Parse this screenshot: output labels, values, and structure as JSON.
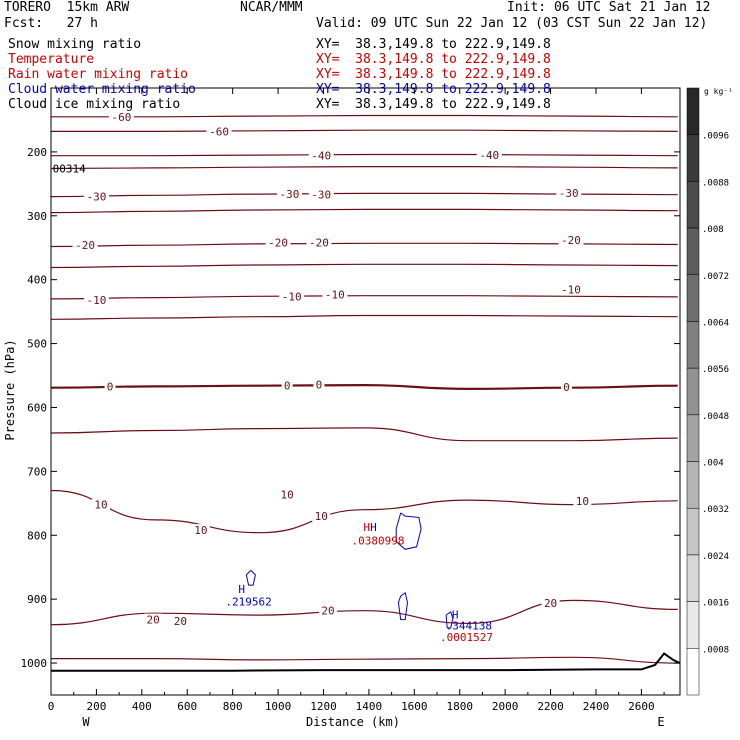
{
  "header": {
    "model": "TORERO  15km ARW",
    "center": "NCAR/MMM",
    "init": "Init: 06 UTC Sat 21 Jan 12",
    "fcst": "Fcst:   27 h",
    "valid": "Valid: 09 UTC Sun 22 Jan 12 (03 CST Sun 22 Jan 12)"
  },
  "fields": [
    {
      "name": "Snow mixing ratio",
      "xy": "XY=  38.3,149.8 to 222.9,149.8",
      "color": "#000000"
    },
    {
      "name": "Temperature",
      "xy": "XY=  38.3,149.8 to 222.9,149.8",
      "color": "#cc0000"
    },
    {
      "name": "Rain water mixing ratio",
      "xy": "XY=  38.3,149.8 to 222.9,149.8",
      "color": "#cc0000"
    },
    {
      "name": "Cloud water mixing ratio",
      "xy": "XY=  38.3,149.8 to 222.9,149.8",
      "color": "#0000cc"
    },
    {
      "name": "Cloud ice mixing ratio",
      "xy": "XY=  38.3,149.8 to 222.9,149.8",
      "color": "#000000"
    }
  ],
  "chart_data": {
    "type": "contour-cross-section",
    "xlabel": "Distance (km)",
    "ylabel": "Pressure (hPa)",
    "x_ticks": [
      0,
      200,
      400,
      600,
      800,
      1000,
      1200,
      1400,
      1600,
      1800,
      2000,
      2200,
      2400,
      2600
    ],
    "xlim": [
      0,
      2770
    ],
    "y_ticks": [
      200,
      300,
      400,
      500,
      600,
      700,
      800,
      900,
      1000
    ],
    "ylim": [
      100,
      1050
    ],
    "x_end_labels": {
      "left": "W",
      "right": "E"
    },
    "colorbar": {
      "unit": "g kg⁻¹",
      "labels": [
        ".0096",
        ".0088",
        ".008",
        ".0072",
        ".0064",
        ".0056",
        ".0048",
        ".004",
        ".0032",
        ".0024",
        ".0016",
        ".0008"
      ],
      "levels": [
        0.0096,
        0.0088,
        0.008,
        0.0072,
        0.0064,
        0.0056,
        0.0048,
        0.004,
        0.0032,
        0.0024,
        0.0016,
        0.0008
      ]
    },
    "temperature_contours": [
      {
        "label": "-60",
        "p": [
          145,
          145,
          144,
          143,
          143,
          144,
          145
        ]
      },
      {
        "label": "-60",
        "p": [
          168,
          168,
          167,
          166,
          166,
          167,
          168
        ]
      },
      {
        "label": "-40",
        "p": [
          206,
          206,
          205,
          204,
          204,
          205,
          206
        ]
      },
      {
        "label": "-40",
        "p": [
          226,
          225,
          224,
          223,
          223,
          224,
          225
        ]
      },
      {
        "label": "-30",
        "p": [
          270,
          268,
          266,
          265,
          265,
          266,
          267
        ]
      },
      {
        "label": "-30",
        "p": [
          295,
          293,
          291,
          290,
          290,
          291,
          292
        ]
      },
      {
        "label": "-20",
        "p": [
          348,
          346,
          344,
          343,
          343,
          344,
          345
        ]
      },
      {
        "label": "-20",
        "p": [
          381,
          379,
          377,
          376,
          376,
          377,
          378
        ]
      },
      {
        "label": "-10",
        "p": [
          430,
          428,
          426,
          425,
          425,
          426,
          427
        ]
      },
      {
        "label": "-10",
        "p": [
          462,
          460,
          458,
          456,
          456,
          457,
          458
        ]
      },
      {
        "label": "0",
        "p": [
          569,
          567,
          566,
          565,
          571,
          569,
          566
        ]
      },
      {
        "label": "",
        "p": [
          640,
          636,
          633,
          632,
          652,
          652,
          648
        ]
      },
      {
        "label": "10",
        "p": [
          730,
          776,
          796,
          760,
          745,
          752,
          746
        ]
      },
      {
        "label": "20",
        "p": [
          940,
          922,
          925,
          918,
          938,
          902,
          916
        ]
      },
      {
        "label": "",
        "p": [
          993,
          993,
          995,
          994,
          993,
          991,
          1000
        ]
      }
    ],
    "contour_x": [
      0,
      460,
      920,
      1380,
      1840,
      2300,
      2760
    ],
    "temperature_labels": [
      {
        "text": "-60",
        "x": 310,
        "p": 145
      },
      {
        "text": "-60",
        "x": 740,
        "p": 168
      },
      {
        "text": "-40",
        "x": 1190,
        "p": 206
      },
      {
        "text": "-40",
        "x": 1930,
        "p": 205
      },
      {
        "text": "-30",
        "x": 200,
        "p": 270
      },
      {
        "text": "-30",
        "x": 1050,
        "p": 266
      },
      {
        "text": "-30",
        "x": 1190,
        "p": 267
      },
      {
        "text": "-30",
        "x": 2280,
        "p": 264
      },
      {
        "text": "-20",
        "x": 150,
        "p": 346
      },
      {
        "text": "-20",
        "x": 1000,
        "p": 342
      },
      {
        "text": "-20",
        "x": 1180,
        "p": 342
      },
      {
        "text": "-20",
        "x": 2290,
        "p": 338
      },
      {
        "text": "-10",
        "x": 200,
        "p": 432
      },
      {
        "text": "-10",
        "x": 1060,
        "p": 426
      },
      {
        "text": "-10",
        "x": 1250,
        "p": 423
      },
      {
        "text": "-10",
        "x": 2290,
        "p": 415
      },
      {
        "text": "0",
        "x": 260,
        "p": 567
      },
      {
        "text": "0",
        "x": 1040,
        "p": 566
      },
      {
        "text": "0",
        "x": 1180,
        "p": 564
      },
      {
        "text": "0",
        "x": 2270,
        "p": 568
      },
      {
        "text": "10",
        "x": 220,
        "p": 752
      },
      {
        "text": "10",
        "x": 1040,
        "p": 736
      },
      {
        "text": "10",
        "x": 660,
        "p": 792
      },
      {
        "text": "10",
        "x": 1190,
        "p": 770
      },
      {
        "text": "10",
        "x": 2340,
        "p": 746
      },
      {
        "text": "20",
        "x": 450,
        "p": 932
      },
      {
        "text": "20",
        "x": 570,
        "p": 934
      },
      {
        "text": "20",
        "x": 1220,
        "p": 918
      },
      {
        "text": "20",
        "x": 2200,
        "p": 906
      }
    ],
    "annotations": [
      {
        "text": "H",
        "color": "#cc0000",
        "x": 1390,
        "p": 787
      },
      {
        "text": "H",
        "color": "#0000cc",
        "x": 1420,
        "p": 787
      },
      {
        "text": ".0380998",
        "color": "#cc0000",
        "x": 1440,
        "p": 808
      },
      {
        "text": "H",
        "color": "#0000cc",
        "x": 840,
        "p": 884
      },
      {
        "text": ".219562",
        "color": "#0000cc",
        "x": 870,
        "p": 904
      },
      {
        "text": "H",
        "color": "#0000cc",
        "x": 1780,
        "p": 924
      },
      {
        "text": ".344138",
        "color": "#0000cc",
        "x": 1840,
        "p": 941
      },
      {
        "text": ".0001527",
        "color": "#cc0000",
        "x": 1830,
        "p": 959
      },
      {
        "text": "00314",
        "color": "#000000",
        "x": 80,
        "p": 226
      }
    ],
    "cloud_water_contours": [
      {
        "x": [
          1540,
          1560,
          1620,
          1630,
          1610,
          1560,
          1520,
          1520,
          1540
        ],
        "p": [
          765,
          770,
          772,
          790,
          818,
          822,
          810,
          790,
          765
        ]
      },
      {
        "x": [
          860,
          880,
          900,
          890,
          870,
          860
        ],
        "p": [
          862,
          855,
          862,
          878,
          878,
          862
        ]
      },
      {
        "x": [
          1540,
          1560,
          1570,
          1560,
          1540,
          1530,
          1540
        ],
        "p": [
          895,
          890,
          905,
          932,
          932,
          905,
          895
        ]
      },
      {
        "x": [
          1740,
          1760,
          1770,
          1760,
          1745,
          1740
        ],
        "p": [
          925,
          920,
          930,
          945,
          945,
          925
        ]
      }
    ],
    "terrain": {
      "x": [
        0,
        400,
        800,
        1200,
        1600,
        2000,
        2400,
        2600,
        2660,
        2700,
        2740,
        2770
      ],
      "p": [
        1012,
        1012,
        1012,
        1011,
        1011,
        1011,
        1010,
        1010,
        1003,
        985,
        995,
        1000
      ]
    }
  }
}
